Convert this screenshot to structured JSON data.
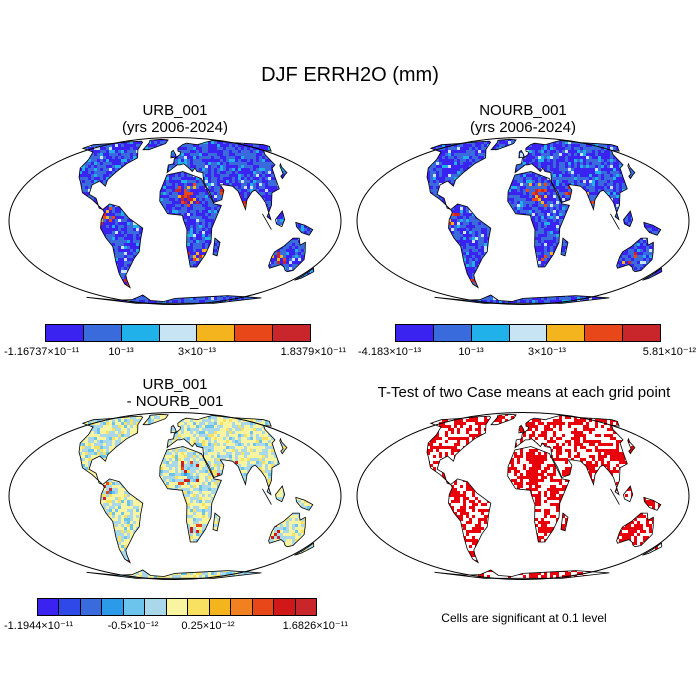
{
  "title": "DJF ERRH2O (mm)",
  "panels": [
    {
      "title_line1": "URB_001",
      "title_line2": "(yrs 2006-2024)",
      "palette": [
        "#3a23f0",
        "#3a6bdc",
        "#20b0ea",
        "#c6e4f4",
        "#f4b41e",
        "#e8471a",
        "#c8262a"
      ],
      "labels": [
        "-1.16737×10⁻¹¹",
        "10⁻¹³",
        "3×10⁻¹³",
        "1.8379×10⁻¹¹"
      ]
    },
    {
      "title_line1": "NOURB_001",
      "title_line2": "(yrs 2006-2024)",
      "palette": [
        "#3a23f0",
        "#3a6bdc",
        "#20b0ea",
        "#c6e4f4",
        "#f4b41e",
        "#e8471a",
        "#c8262a"
      ],
      "labels": [
        "-4.183×10⁻¹³",
        "10⁻¹³",
        "3×10⁻¹³",
        "5.81×10⁻¹²"
      ]
    },
    {
      "title_line1": "URB_001",
      "title_line2": "- NOURB_001",
      "palette": [
        "#3a23f0",
        "#2f49e8",
        "#3a6bdc",
        "#2b9ae8",
        "#6cc4ec",
        "#a8d8ea",
        "#f8f4a0",
        "#f8e060",
        "#f4b41e",
        "#f08020",
        "#e8471a",
        "#d01818",
        "#c8262a"
      ],
      "labels": [
        "-1.1944×10⁻¹¹",
        "-0.5×10⁻¹²",
        "0.25×10⁻¹²",
        "1.6826×10⁻¹¹"
      ]
    },
    {
      "title": "T-Test of two Case means at each grid point",
      "note": "Cells are significant at 0.1 level",
      "sig_color": "#e8000a"
    }
  ]
}
